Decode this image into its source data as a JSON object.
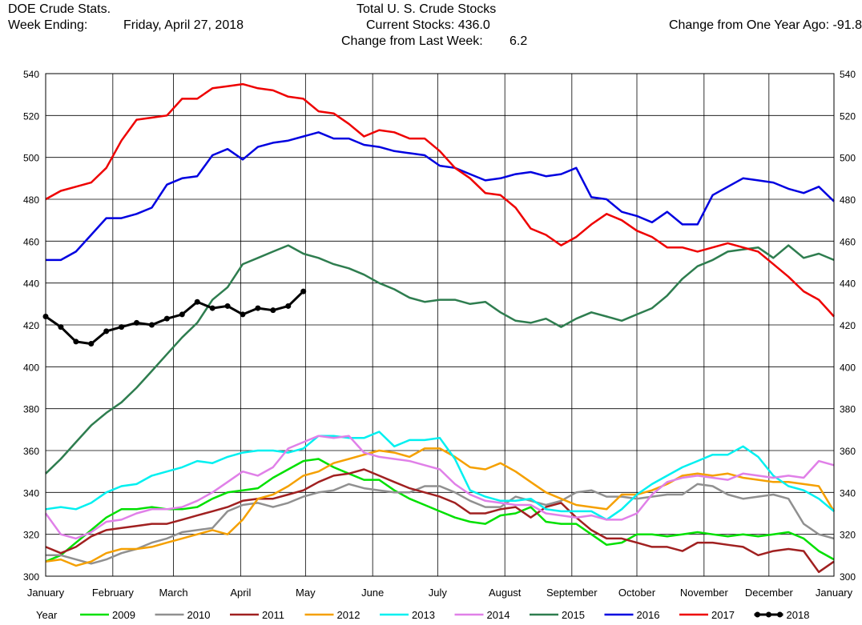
{
  "header": {
    "left_title": "DOE Crude Stats.",
    "week_label": "Week Ending:",
    "week_date": "Friday, April 27, 2018",
    "center_title": "Total U. S. Crude Stocks",
    "current_stocks": "Current Stocks: 436.0",
    "change_week_label": "Change from Last Week:",
    "change_week_value": "6.2",
    "change_year": "Change from One Year Ago: -91.8"
  },
  "chart_data": {
    "type": "line",
    "x_unit": "week of year",
    "xlim": [
      1,
      53
    ],
    "ylim": [
      300,
      540
    ],
    "y_ticks": [
      300,
      320,
      340,
      360,
      380,
      400,
      420,
      440,
      460,
      480,
      500,
      520,
      540
    ],
    "x_ticks": [
      {
        "label": "January",
        "week": 1
      },
      {
        "label": "February",
        "week": 5.43
      },
      {
        "label": "March",
        "week": 9.43
      },
      {
        "label": "April",
        "week": 13.86
      },
      {
        "label": "May",
        "week": 18.14
      },
      {
        "label": "June",
        "week": 22.57
      },
      {
        "label": "July",
        "week": 26.86
      },
      {
        "label": "August",
        "week": 31.29
      },
      {
        "label": "September",
        "week": 35.71
      },
      {
        "label": "October",
        "week": 40
      },
      {
        "label": "November",
        "week": 44.43
      },
      {
        "label": "December",
        "week": 48.71
      },
      {
        "label": "January",
        "week": 53
      }
    ],
    "grid": true,
    "legend_position": "bottom",
    "legend_title": "Year",
    "series": [
      {
        "name": "2009",
        "color": "#00e000",
        "width": 2.5,
        "markers": false,
        "values": [
          307,
          310,
          316,
          322,
          328,
          332,
          332,
          333,
          332,
          332,
          333,
          337,
          340,
          341,
          342,
          347,
          351,
          355,
          356,
          352,
          349,
          346,
          346,
          341,
          337,
          334,
          331,
          328,
          326,
          325,
          329,
          330,
          333,
          326,
          325,
          325,
          320,
          315,
          316,
          320,
          320,
          319,
          320,
          321,
          320,
          319,
          320,
          319,
          320,
          321,
          318,
          312,
          308
        ]
      },
      {
        "name": "2010",
        "color": "#909090",
        "width": 2.5,
        "markers": false,
        "values": [
          310,
          310,
          308,
          306,
          308,
          311,
          313,
          316,
          318,
          321,
          322,
          323,
          331,
          334,
          335,
          333,
          335,
          338,
          340,
          341,
          344,
          342,
          341,
          340,
          340,
          343,
          343,
          340,
          336,
          333,
          333,
          338,
          336,
          334,
          336,
          340,
          341,
          338,
          338,
          337,
          338,
          339,
          339,
          344,
          343,
          339,
          337,
          338,
          339,
          337,
          325,
          320,
          318
        ]
      },
      {
        "name": "2011",
        "color": "#a02020",
        "width": 2.5,
        "markers": false,
        "values": [
          314,
          311,
          314,
          319,
          322,
          323,
          324,
          325,
          325,
          327,
          329,
          331,
          333,
          336,
          337,
          337,
          339,
          341,
          345,
          348,
          349,
          351,
          348,
          345,
          342,
          340,
          338,
          335,
          330,
          330,
          332,
          333,
          328,
          333,
          335,
          328,
          322,
          318,
          318,
          316,
          314,
          314,
          312,
          316,
          316,
          315,
          314,
          310,
          312,
          313,
          312,
          302,
          307
        ]
      },
      {
        "name": "2012",
        "color": "#f5a000",
        "width": 2.5,
        "markers": false,
        "values": [
          307,
          308,
          305,
          307,
          311,
          313,
          313,
          314,
          316,
          318,
          320,
          322,
          320,
          327,
          337,
          339,
          343,
          348,
          350,
          354,
          356,
          358,
          360,
          359,
          357,
          361,
          361,
          357,
          352,
          351,
          354,
          350,
          345,
          340,
          337,
          334,
          333,
          332,
          339,
          339,
          341,
          344,
          348,
          349,
          348,
          349,
          347,
          346,
          345,
          345,
          344,
          343,
          331
        ]
      },
      {
        "name": "2013",
        "color": "#00f0f0",
        "width": 2.5,
        "markers": false,
        "values": [
          332,
          333,
          332,
          335,
          340,
          343,
          344,
          348,
          350,
          352,
          355,
          354,
          357,
          359,
          360,
          360,
          359,
          361,
          367,
          367,
          366,
          366,
          369,
          362,
          365,
          365,
          366,
          356,
          341,
          338,
          336,
          336,
          337,
          332,
          331,
          331,
          331,
          327,
          332,
          339,
          344,
          348,
          352,
          355,
          358,
          358,
          362,
          357,
          348,
          343,
          341,
          337,
          331
        ]
      },
      {
        "name": "2014",
        "color": "#e080e8",
        "width": 2.5,
        "markers": false,
        "values": [
          330,
          320,
          318,
          321,
          326,
          327,
          330,
          332,
          332,
          333,
          336,
          340,
          345,
          350,
          348,
          352,
          361,
          364,
          367,
          366,
          367,
          359,
          357,
          356,
          355,
          353,
          351,
          344,
          339,
          336,
          335,
          334,
          334,
          330,
          329,
          328,
          329,
          327,
          327,
          330,
          339,
          345,
          347,
          348,
          347,
          346,
          349,
          348,
          347,
          348,
          347,
          355,
          353
        ]
      },
      {
        "name": "2015",
        "color": "#2e7d4f",
        "width": 2.5,
        "markers": false,
        "values": [
          349,
          356,
          364,
          372,
          378,
          383,
          390,
          398,
          406,
          414,
          421,
          432,
          438,
          449,
          452,
          455,
          458,
          454,
          452,
          449,
          447,
          444,
          440,
          437,
          433,
          431,
          432,
          432,
          430,
          431,
          426,
          422,
          421,
          423,
          419,
          423,
          426,
          424,
          422,
          425,
          428,
          434,
          442,
          448,
          451,
          455,
          456,
          457,
          452,
          458,
          452,
          454,
          451
        ]
      },
      {
        "name": "2016",
        "color": "#0000e0",
        "width": 2.5,
        "markers": false,
        "values": [
          451,
          451,
          455,
          463,
          471,
          471,
          473,
          476,
          487,
          490,
          491,
          501,
          504,
          499,
          505,
          507,
          508,
          510,
          512,
          509,
          509,
          506,
          505,
          503,
          502,
          501,
          496,
          495,
          492,
          489,
          490,
          492,
          493,
          491,
          492,
          495,
          481,
          480,
          474,
          472,
          469,
          474,
          468,
          468,
          482,
          486,
          490,
          489,
          488,
          485,
          483,
          486,
          479
        ]
      },
      {
        "name": "2017",
        "color": "#ee0000",
        "width": 2.5,
        "markers": false,
        "values": [
          480,
          484,
          486,
          488,
          495,
          508,
          518,
          519,
          520,
          528,
          528,
          533,
          534,
          535,
          533,
          532,
          529,
          528,
          522,
          521,
          516,
          510,
          513,
          512,
          509,
          509,
          503,
          495,
          490,
          483,
          482,
          476,
          466,
          463,
          458,
          462,
          468,
          473,
          470,
          465,
          462,
          457,
          457,
          455,
          457,
          459,
          457,
          455,
          449,
          443,
          436,
          432,
          424
        ]
      },
      {
        "name": "2018",
        "color": "#000000",
        "width": 3,
        "markers": true,
        "values": [
          424,
          419,
          412,
          411,
          417,
          419,
          421,
          420,
          423,
          425,
          431,
          428,
          429,
          425,
          428,
          427,
          429,
          436
        ]
      }
    ]
  }
}
